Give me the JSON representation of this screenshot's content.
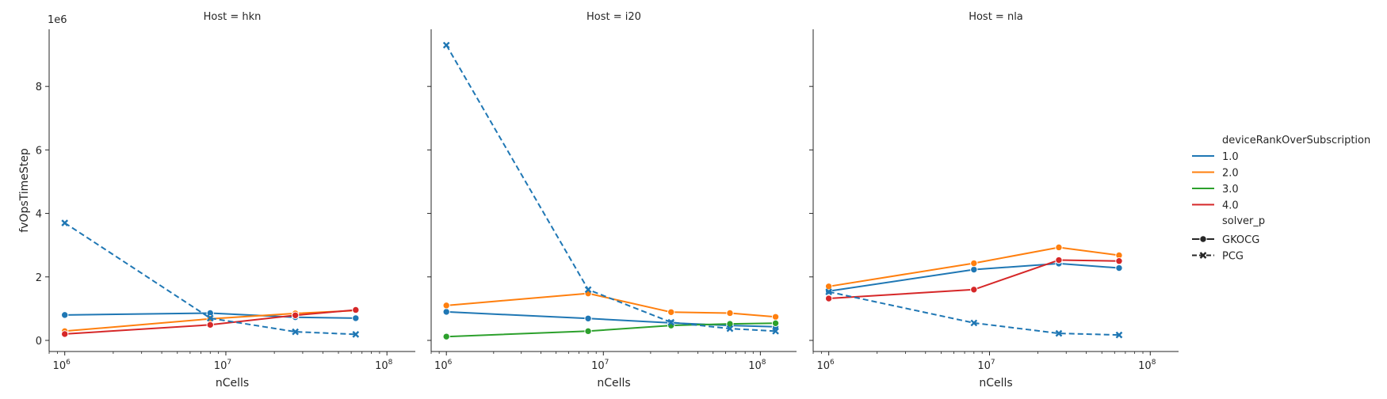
{
  "chart_data": [
    {
      "type": "line",
      "title": "Host = hkn",
      "xlabel": "nCells",
      "ylabel": "fvOpsTimeStep",
      "y_offset_label": "1e6",
      "x_scale": "log",
      "xlim": [
        800000,
        150000000
      ],
      "ylim": [
        -350000,
        9800000
      ],
      "x_ticks": [
        1000000,
        10000000,
        100000000
      ],
      "x_tick_labels": [
        "6",
        "7",
        "8"
      ],
      "y_ticks": [
        0,
        2000000,
        4000000,
        6000000,
        8000000
      ],
      "y_tick_labels": [
        "0",
        "2",
        "4",
        "6",
        "8"
      ],
      "grid": false,
      "series": [
        {
          "name": "1.0",
          "solver": "GKOCG",
          "x": [
            1000000,
            8000000,
            27000000,
            64000000
          ],
          "y": [
            800000,
            860000,
            730000,
            700000
          ]
        },
        {
          "name": "2.0",
          "solver": "GKOCG",
          "x": [
            1000000,
            8000000,
            27000000,
            64000000
          ],
          "y": [
            290000,
            680000,
            850000,
            940000
          ]
        },
        {
          "name": "4.0",
          "solver": "GKOCG",
          "x": [
            1000000,
            8000000,
            27000000,
            64000000
          ],
          "y": [
            200000,
            490000,
            790000,
            960000
          ]
        },
        {
          "name": "1.0",
          "solver": "PCG",
          "x": [
            1000000,
            8000000,
            27000000,
            64000000
          ],
          "y": [
            3700000,
            700000,
            270000,
            190000
          ]
        }
      ]
    },
    {
      "type": "line",
      "title": "Host = i20",
      "xlabel": "nCells",
      "ylabel": "",
      "x_scale": "log",
      "xlim": [
        800000,
        170000000
      ],
      "ylim": [
        -350000,
        9800000
      ],
      "x_ticks": [
        1000000,
        10000000,
        100000000
      ],
      "x_tick_labels": [
        "6",
        "7",
        "8"
      ],
      "y_ticks": [
        0,
        2000000,
        4000000,
        6000000,
        8000000
      ],
      "grid": false,
      "series": [
        {
          "name": "1.0",
          "solver": "GKOCG",
          "x": [
            1000000,
            8000000,
            27000000,
            64000000,
            125000000
          ],
          "y": [
            900000,
            690000,
            550000,
            470000,
            430000
          ]
        },
        {
          "name": "2.0",
          "solver": "GKOCG",
          "x": [
            1000000,
            8000000,
            27000000,
            64000000,
            125000000
          ],
          "y": [
            1100000,
            1480000,
            890000,
            860000,
            740000
          ]
        },
        {
          "name": "3.0",
          "solver": "GKOCG",
          "x": [
            1000000,
            8000000,
            27000000,
            64000000,
            125000000
          ],
          "y": [
            120000,
            290000,
            470000,
            520000,
            540000
          ]
        },
        {
          "name": "1.0",
          "solver": "PCG",
          "x": [
            1000000,
            8000000,
            27000000,
            64000000,
            125000000
          ],
          "y": [
            9300000,
            1600000,
            570000,
            370000,
            290000
          ]
        }
      ]
    },
    {
      "type": "line",
      "title": "Host = nla",
      "xlabel": "nCells",
      "ylabel": "",
      "x_scale": "log",
      "xlim": [
        800000,
        150000000
      ],
      "ylim": [
        -350000,
        9800000
      ],
      "x_ticks": [
        1000000,
        10000000,
        100000000
      ],
      "x_tick_labels": [
        "6",
        "7",
        "8"
      ],
      "y_ticks": [
        0,
        2000000,
        4000000,
        6000000,
        8000000
      ],
      "grid": false,
      "series": [
        {
          "name": "1.0",
          "solver": "GKOCG",
          "x": [
            1000000,
            8000000,
            27000000,
            64000000
          ],
          "y": [
            1550000,
            2230000,
            2420000,
            2280000
          ]
        },
        {
          "name": "2.0",
          "solver": "GKOCG",
          "x": [
            1000000,
            8000000,
            27000000,
            64000000
          ],
          "y": [
            1700000,
            2430000,
            2930000,
            2680000
          ]
        },
        {
          "name": "4.0",
          "solver": "GKOCG",
          "x": [
            1000000,
            8000000,
            27000000,
            64000000
          ],
          "y": [
            1320000,
            1600000,
            2530000,
            2500000
          ]
        },
        {
          "name": "1.0",
          "solver": "PCG",
          "x": [
            1000000,
            8000000,
            27000000,
            64000000
          ],
          "y": [
            1530000,
            550000,
            220000,
            170000
          ]
        }
      ]
    }
  ],
  "colors": {
    "1.0": "#1f77b4",
    "2.0": "#ff7f0e",
    "3.0": "#2ca02c",
    "4.0": "#d62728"
  },
  "legend": {
    "placement": "right",
    "hue_title": "deviceRankOverSubscription",
    "hue_items": [
      "1.0",
      "2.0",
      "3.0",
      "4.0"
    ],
    "style_title": "solver_p",
    "style_items": [
      {
        "label": "GKOCG",
        "marker": "circle",
        "dash": "solid"
      },
      {
        "label": "PCG",
        "marker": "x",
        "dash": "dashed"
      }
    ]
  }
}
